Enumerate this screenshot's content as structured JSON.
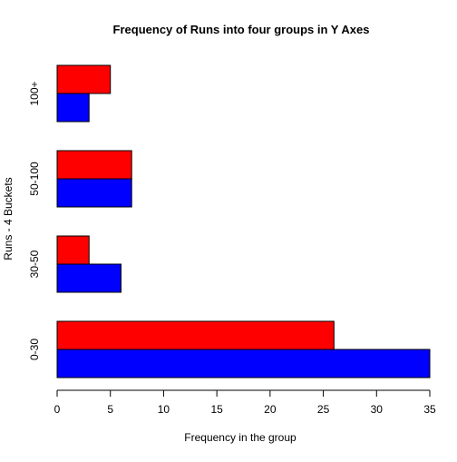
{
  "chart_data": {
    "type": "bar",
    "orientation": "horizontal",
    "title": "Frequency of Runs into four groups in Y Axes",
    "xlabel": "Frequency in the group",
    "ylabel": "Runs - 4 Buckets",
    "categories": [
      "0-30",
      "30-50",
      "50-100",
      "100+"
    ],
    "series": [
      {
        "values": [
          35,
          6,
          7,
          3
        ],
        "color": "#0000ff"
      },
      {
        "values": [
          26,
          3,
          7,
          5
        ],
        "color": "#ff0000"
      }
    ],
    "xlim": [
      0,
      35
    ],
    "xticks": [
      0,
      5,
      10,
      15,
      20,
      25,
      30,
      35
    ],
    "grid": false,
    "legend": "none"
  }
}
